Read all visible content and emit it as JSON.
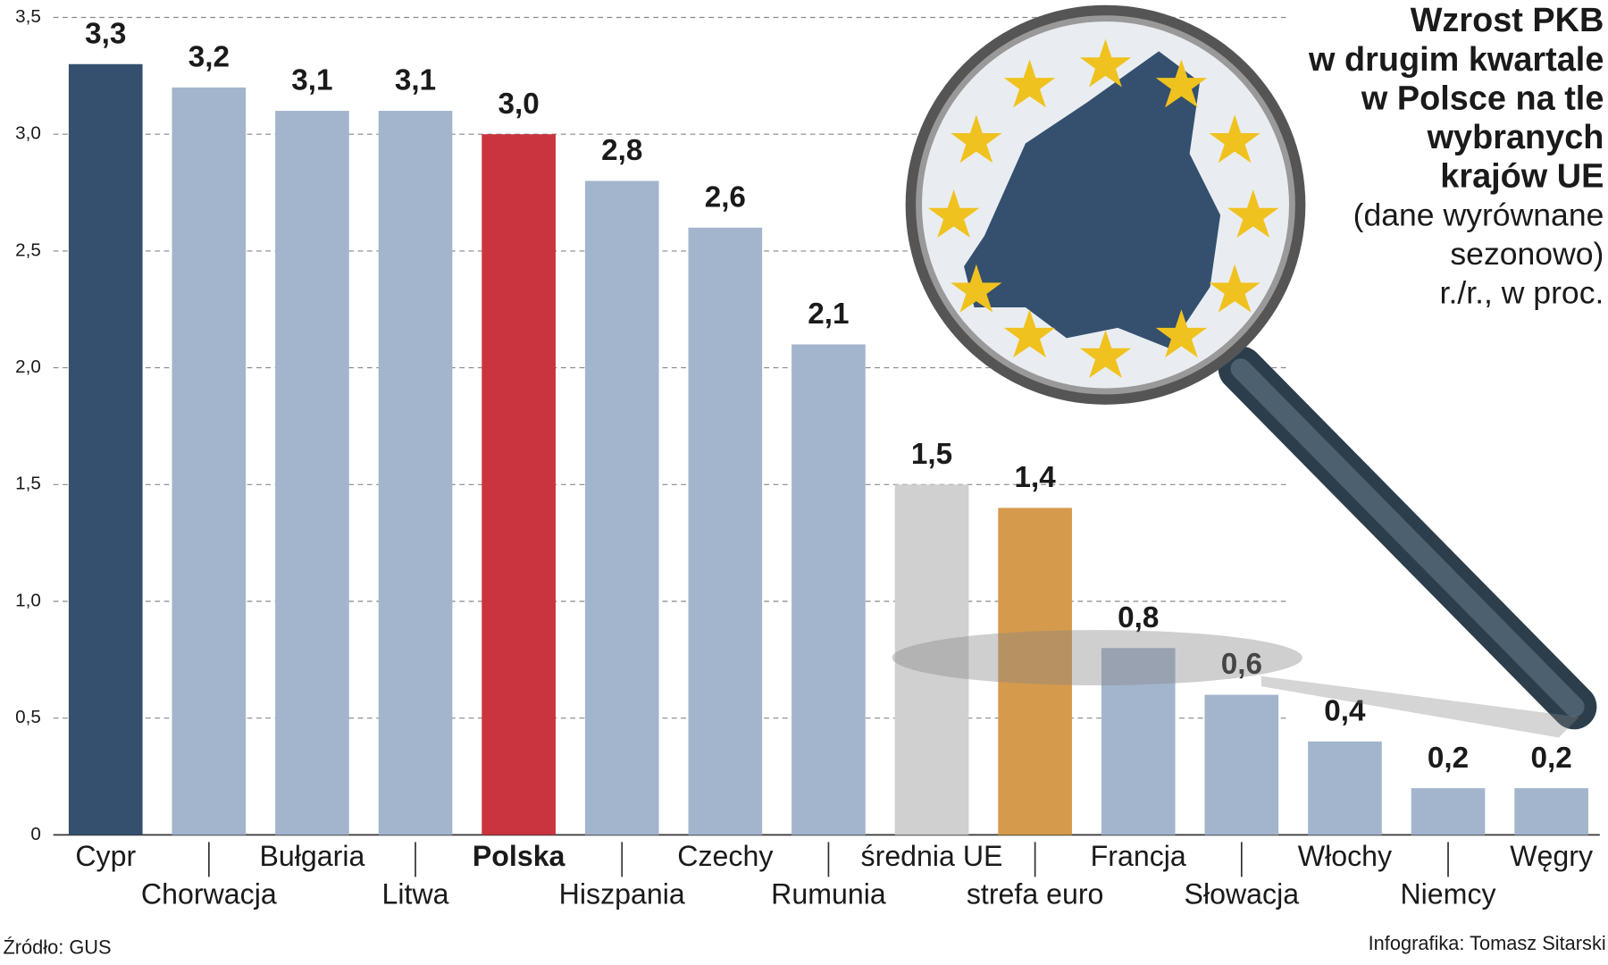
{
  "chart_data": {
    "type": "bar",
    "title": [
      "Wzrost PKB",
      "w drugim kwartale",
      "w Polsce na tle",
      "wybranych",
      "krajów UE"
    ],
    "subtitle": [
      "(dane wyrównane",
      "sezonowo)",
      "r./r., w proc."
    ],
    "categories": [
      "Cypr",
      "Chorwacja",
      "Bułgaria",
      "Litwa",
      "Polska",
      "Hiszpania",
      "Czechy",
      "Rumunia",
      "średnia UE",
      "strefa euro",
      "Francja",
      "Słowacja",
      "Włochy",
      "Niemcy",
      "Węgry"
    ],
    "values": [
      3.3,
      3.2,
      3.1,
      3.1,
      3.0,
      2.8,
      2.6,
      2.1,
      1.5,
      1.4,
      0.8,
      0.6,
      0.4,
      0.2,
      0.2
    ],
    "value_labels": [
      "3,3",
      "3,2",
      "3,1",
      "3,1",
      "3,0",
      "2,8",
      "2,6",
      "2,1",
      "1,5",
      "1,4",
      "0,8",
      "0,6",
      "0,4",
      "0,2",
      "0,2"
    ],
    "colors": [
      "#34506e",
      "#a3b5cd",
      "#a3b5cd",
      "#a3b5cd",
      "#c9343f",
      "#a3b5cd",
      "#a3b5cd",
      "#a3b5cd",
      "#d0d0d0",
      "#d69a4c",
      "#a3b5cd",
      "#a3b5cd",
      "#a3b5cd",
      "#a3b5cd",
      "#a3b5cd"
    ],
    "highlight_category": "Polska",
    "ylim": [
      0,
      3.5
    ],
    "yticks": [
      0,
      {
        "value": 0.5,
        "label": "0,5"
      },
      {
        "value": 1.0,
        "label": "1,0"
      },
      {
        "value": 1.5,
        "label": "1,5"
      },
      {
        "value": 2.0,
        "label": "2,0"
      },
      {
        "value": 2.5,
        "label": "2,5"
      },
      {
        "value": 3.0,
        "label": "3,0"
      },
      {
        "value": 3.5,
        "label": "3,5"
      }
    ],
    "grid": true,
    "source": "Źródło: GUS",
    "credit": "Infografika: Tomasz Sitarski"
  }
}
